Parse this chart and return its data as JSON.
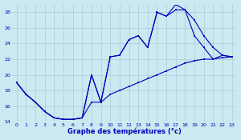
{
  "xlabel": "Graphe des températures (°c)",
  "background_color": "#cce8f0",
  "grid_color": "#aaccdd",
  "line_color": "#0000bb",
  "xlim": [
    -0.5,
    23.5
  ],
  "ylim": [
    14,
    29
  ],
  "xticks": [
    0,
    1,
    2,
    3,
    4,
    5,
    6,
    7,
    8,
    9,
    10,
    11,
    12,
    13,
    14,
    15,
    16,
    17,
    18,
    19,
    20,
    21,
    22,
    23
  ],
  "yticks": [
    14,
    16,
    18,
    20,
    22,
    24,
    26,
    28
  ],
  "line1_y": [
    19.0,
    17.5,
    16.5,
    15.3,
    14.5,
    14.3,
    14.3,
    14.5,
    20.0,
    16.5,
    22.3,
    22.5,
    24.5,
    25.0,
    23.5,
    28.0,
    27.5,
    29.0,
    28.3,
    25.0,
    23.5,
    22.0,
    22.5,
    22.3
  ],
  "line2_y": [
    19.0,
    17.5,
    16.5,
    15.3,
    14.5,
    14.3,
    14.3,
    14.5,
    20.0,
    16.5,
    22.3,
    22.5,
    24.5,
    25.0,
    23.5,
    28.0,
    27.5,
    28.3,
    28.3,
    27.0,
    25.0,
    23.5,
    22.5,
    22.3
  ],
  "line3_y": [
    19.0,
    17.5,
    16.5,
    15.3,
    14.5,
    14.3,
    14.3,
    14.5,
    16.5,
    16.5,
    17.5,
    18.0,
    18.5,
    19.0,
    19.5,
    20.0,
    20.5,
    21.0,
    21.5,
    21.8,
    22.0,
    22.0,
    22.2,
    22.3
  ]
}
